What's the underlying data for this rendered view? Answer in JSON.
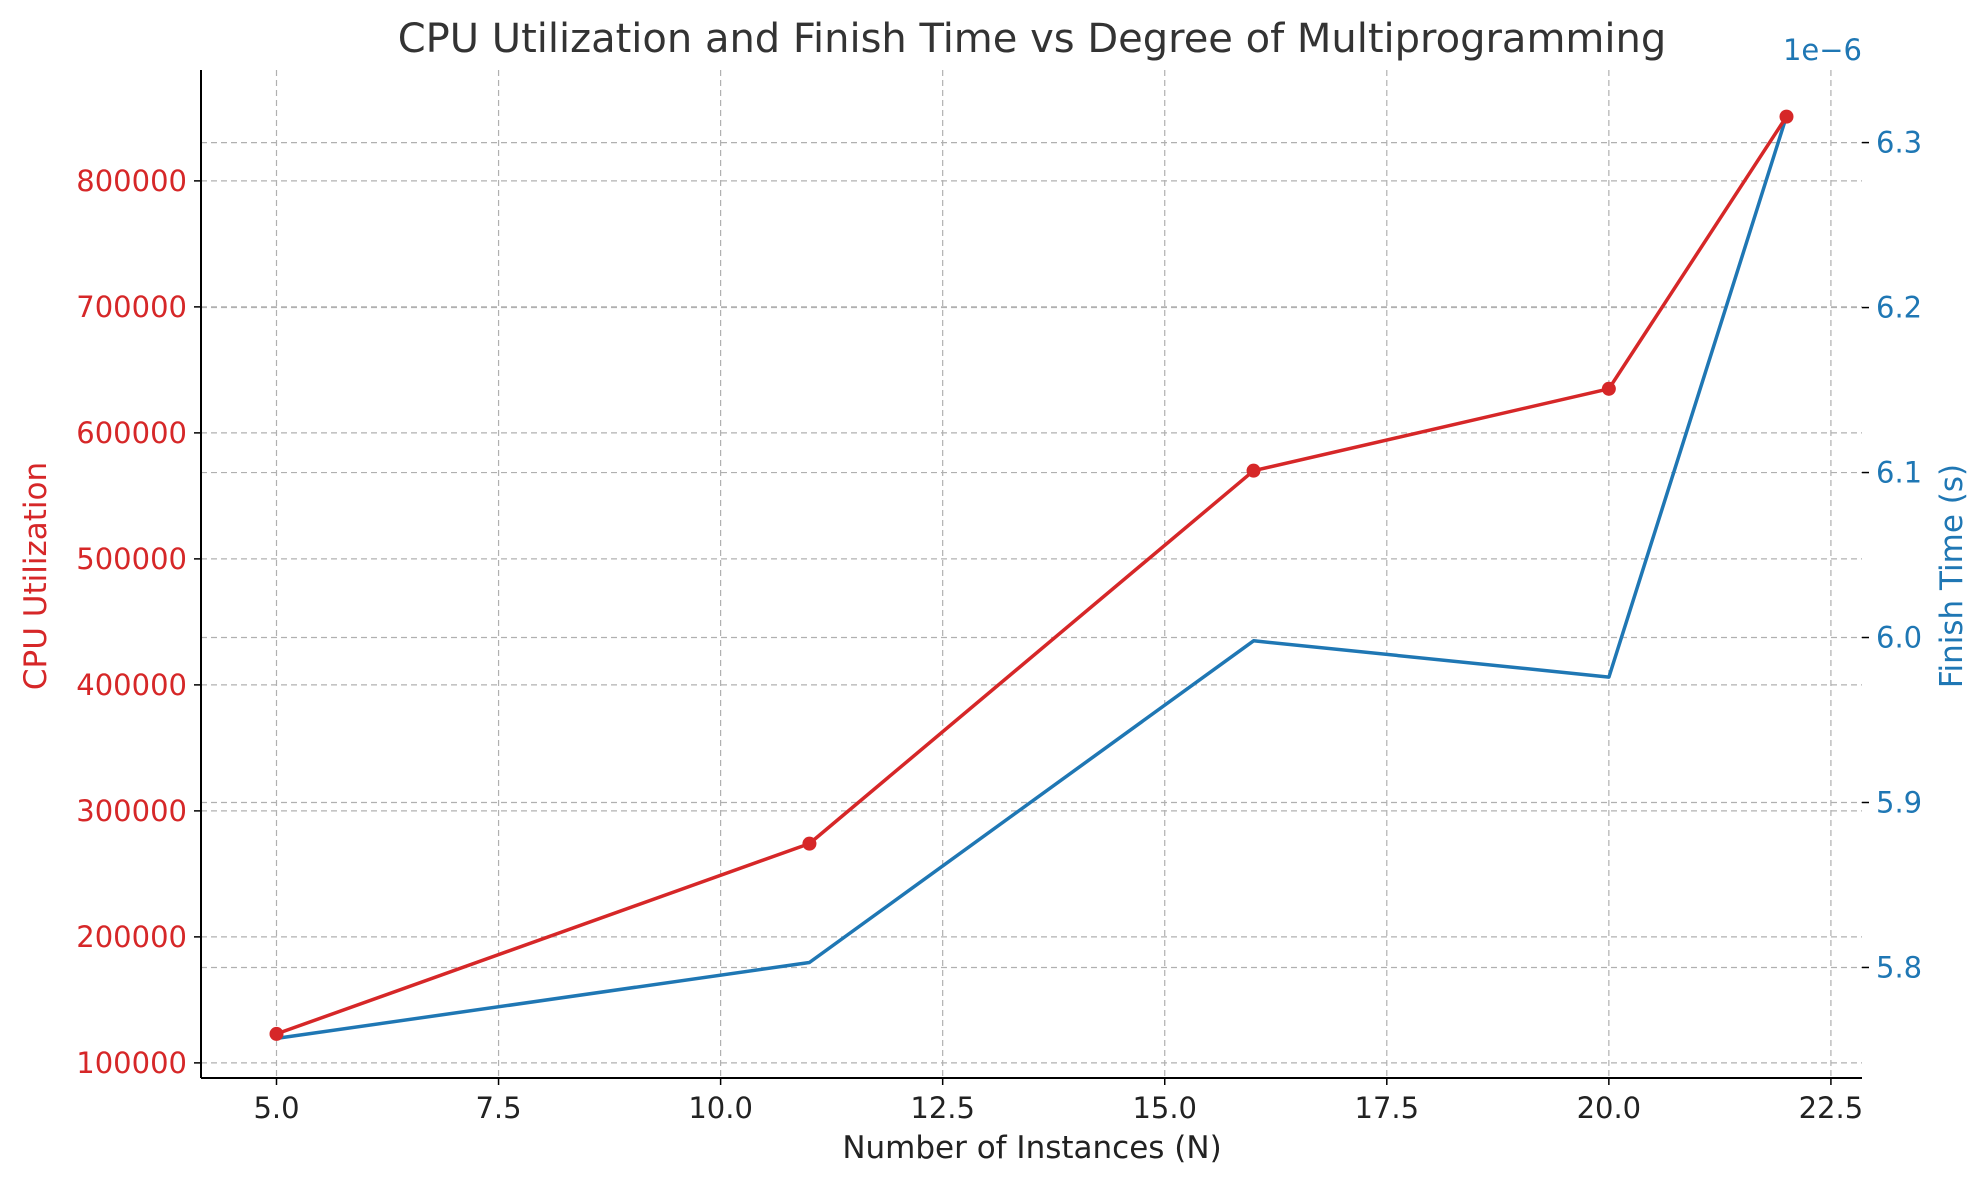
{
  "chart_data": {
    "type": "line",
    "title": "CPU Utilization and Finish Time vs Degree of Multiprogramming",
    "xlabel": "Number of Instances (N)",
    "x": [
      5,
      11,
      16,
      20,
      22
    ],
    "xlim": [
      4.15,
      22.85
    ],
    "xticks": [
      5.0,
      7.5,
      10.0,
      12.5,
      15.0,
      17.5,
      20.0,
      22.5
    ],
    "xtick_labels": [
      "5.0",
      "7.5",
      "10.0",
      "12.5",
      "15.0",
      "17.5",
      "20.0",
      "22.5"
    ],
    "grid": true,
    "y_left": {
      "label": "CPU Utilization",
      "color": "#d62728",
      "ylim": [
        88000,
        888000
      ],
      "ticks": [
        100000,
        200000,
        300000,
        400000,
        500000,
        600000,
        700000,
        800000
      ],
      "tick_labels": [
        "100000",
        "200000",
        "300000",
        "400000",
        "500000",
        "600000",
        "700000",
        "800000"
      ]
    },
    "y_right": {
      "label": "Finish Time (s)",
      "color": "#1f77b4",
      "offset_text": "1e−6",
      "ylim": [
        5.733,
        6.344
      ],
      "ticks": [
        5.8,
        5.9,
        6.0,
        6.1,
        6.2,
        6.3
      ],
      "tick_labels": [
        "5.8",
        "5.9",
        "6.0",
        "6.1",
        "6.2",
        "6.3"
      ]
    },
    "series": [
      {
        "axis": "left",
        "color": "#d62728",
        "markers": true,
        "values": [
          123000,
          274000,
          570000,
          635000,
          851000
        ]
      },
      {
        "axis": "right",
        "color": "#1f77b4",
        "markers": false,
        "values": [
          5.757,
          5.803,
          5.998,
          5.976,
          6.316
        ]
      }
    ]
  }
}
